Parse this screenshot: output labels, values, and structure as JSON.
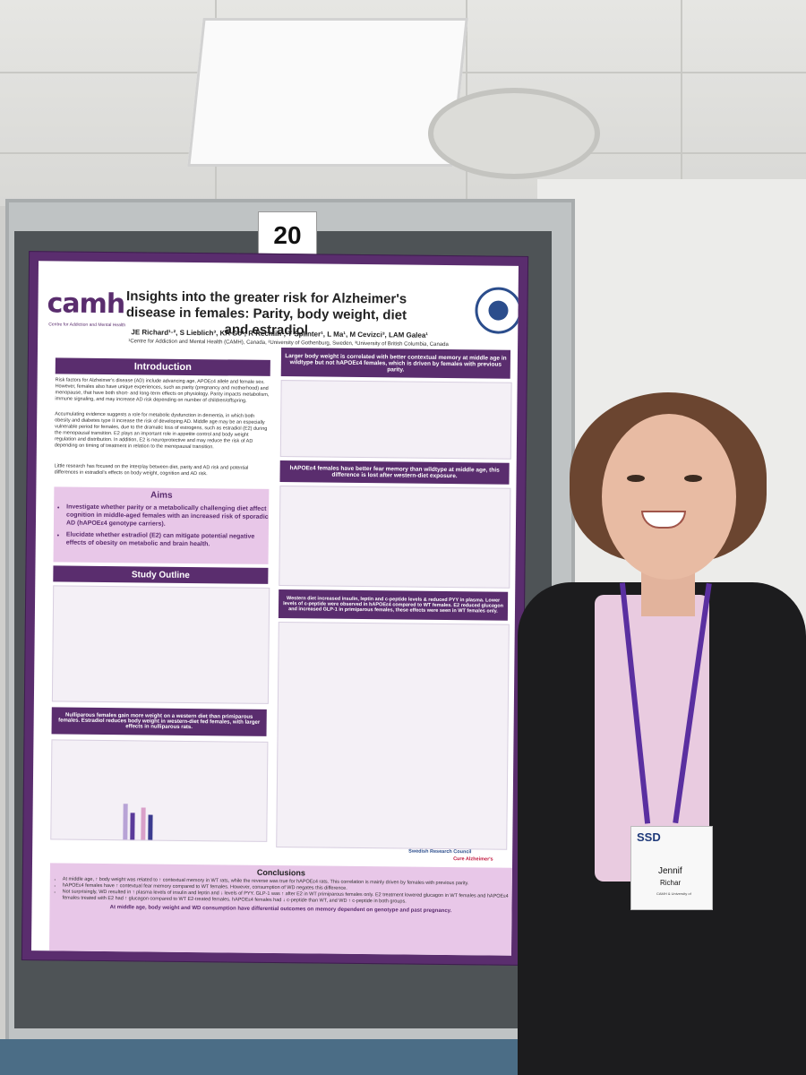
{
  "poster_number": "20",
  "logo": {
    "name": "camh",
    "subtitle": "Centre for Addiction and Mental Health"
  },
  "title": "Insights into the greater risk for Alzheimer's disease in females: Parity, body weight, diet and estradiol",
  "authors": "JE Richard¹·², S Lieblich³, KA Go¹, R Rechlin³, T Splinter¹, L Ma¹, M Cevizci³, LAM Galea¹",
  "affiliations": "¹Centre for Addiction and Mental Health (CAMH), Canada, ²University of Gothenburg, Sweden, ³University of British Columbia, Canada",
  "sections": {
    "introduction": "Introduction",
    "aims": "Aims",
    "study_outline": "Study Outline",
    "conclusions": "Conclusions"
  },
  "intro_text": [
    "Risk factors for Alzheimer's disease (AD) include advancing age, APOEε4 allele and female sex. However, females also have unique experiences, such as parity (pregnancy and motherhood) and menopause, that have both short- and long-term effects on physiology. Parity impacts metabolism, immune signaling, and may increase AD risk depending on number of children/offspring.",
    "Accumulating evidence suggests a role for metabolic dysfunction in dementia, in which both obesity and diabetes type II increase the risk of developing AD. Middle age may be an especially vulnerable period for females, due to the dramatic loss of estrogens, such as estradiol (E2) during the menopausal transition. E2 plays an important role in appetite control and body weight regulation and distribution. In addition, E2 is neuroprotective and may reduce the risk of AD depending on timing of treatment in relation to the menopausal transition.",
    "Little research has focused on the interplay between diet, parity and AD risk and potential differences in estradiol's effects on body weight, cognition and AD risk."
  ],
  "aims": [
    "Investigate whether parity or a metabolically challenging diet affect cognition in middle-aged females with an increased risk of sporadic AD (hAPOEε4 genotype carriers).",
    "Elucidate whether estradiol (E2) can mitigate potential negative effects of obesity on metabolic and brain health."
  ],
  "result_headers": [
    "Larger body weight is correlated with better contextual memory at middle age in wildtype but not hAPOEε4 females, which is driven by females with previous parity.",
    "hAPOEε4 females have better fear memory than wildtype at middle age, this difference is lost after western-diet exposure.",
    "Western diet increased insulin, leptin and c-peptide levels & reduced PYY in plasma. Lower levels of c-peptide were observed in hAPOEε4 compared to WT females. E2 reduced glucagon and increased GLP-1 in primiparous females, these effects were seen in WT females only.",
    "Nulliparous females gain more weight on a western diet than primiparous females. Estradiol reduces body weight in western-diet fed females, with larger effects in nulliparous rats."
  ],
  "conclusions": [
    "At middle age, ↑ body weight was related to ↑ contextual memory in WT rats, while the reverse was true for hAPOEε4 rats. This correlation is mainly driven by females with previous parity.",
    "hAPOEε4 females have ↑ contextual fear memory compared to WT females. However, consumption of WD negates this difference.",
    "Not surprisingly, WD resulted in ↑ plasma levels of insulin and leptin and ↓ levels of PYY. GLP-1 was ↑ after E2 in WT primiparous females only. E2 treatment lowered glucagon in WT females and hAPOEε4 females treated with E2 had ↑ glucagon compared to WT E2-treated females. hAPOEε4 females had ↓ c-peptide than WT, and WD ↑ c-peptide in both groups."
  ],
  "conclusion_summary": "At middle age, body weight and WD consumption have differential outcomes on memory dependent on genotype and past pregnancy.",
  "funders": [
    "Swedish Research Council",
    "Cure Alzheimer's"
  ],
  "badge": {
    "logo": "SSD",
    "name": "Jennif",
    "surname": "Richar",
    "affiliation": "CAMH & University of"
  },
  "colors": {
    "poster_purple": "#5a2d6e",
    "aims_pink": "#e8c7e8",
    "lanyard": "#5a2fa0"
  }
}
